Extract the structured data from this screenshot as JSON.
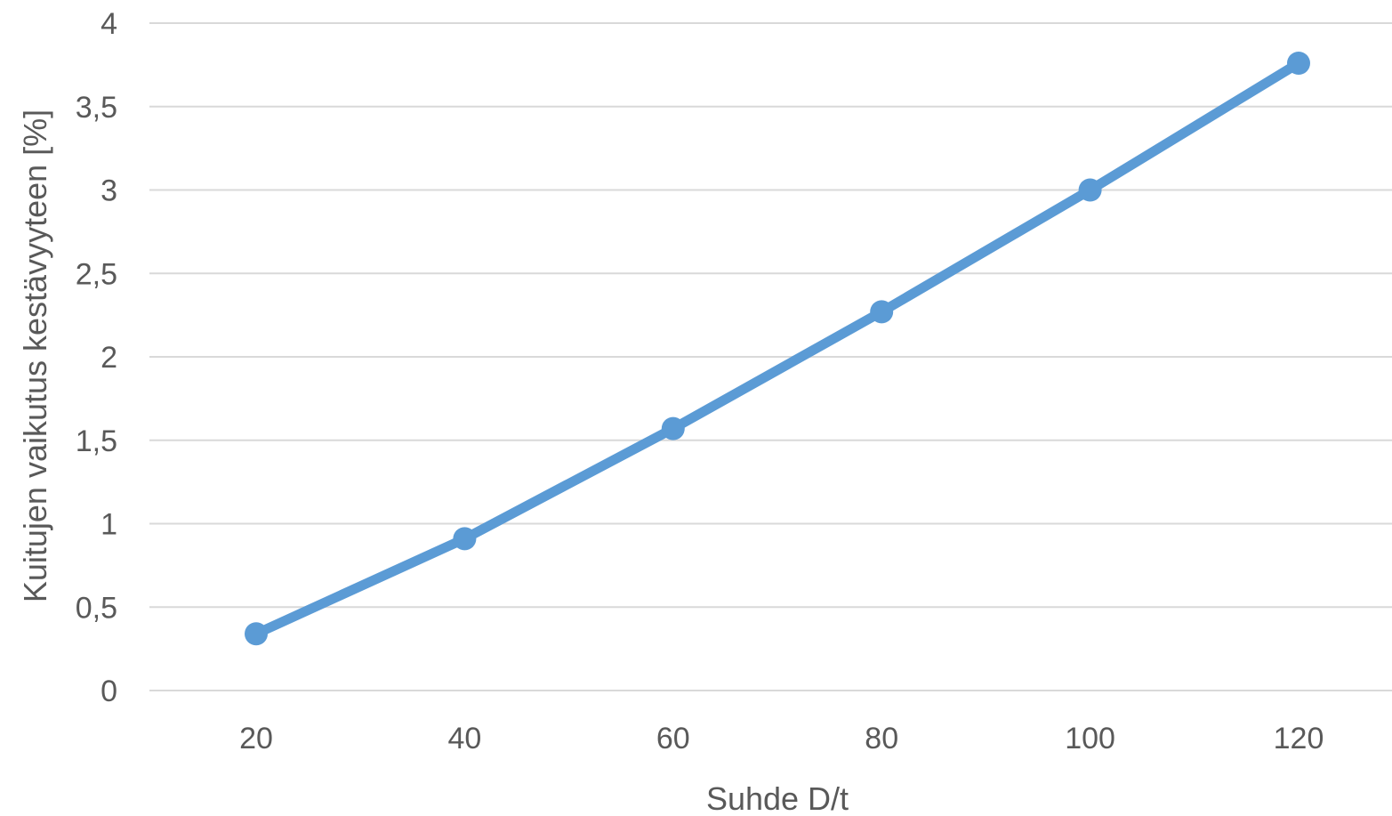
{
  "chart_data": {
    "type": "line",
    "title": "",
    "xlabel": "Suhde D/t",
    "ylabel": "Kuitujen vaikutus kestävyyteen [%]",
    "categories": [
      "20",
      "40",
      "60",
      "80",
      "100",
      "120"
    ],
    "x": [
      20,
      40,
      60,
      80,
      100,
      120
    ],
    "series": [
      {
        "values": [
          0.34,
          0.91,
          1.57,
          2.27,
          3.0,
          3.76
        ]
      }
    ],
    "ylim": [
      0,
      4
    ],
    "yticks": [
      0,
      0.5,
      1,
      1.5,
      2,
      2.5,
      3,
      3.5,
      4
    ],
    "ytick_labels": [
      "0",
      "0,5",
      "1",
      "1,5",
      "2",
      "2,5",
      "3",
      "3,5",
      "4"
    ],
    "grid": true,
    "legend": "none",
    "markers": true,
    "color": "#5b9bd5"
  }
}
